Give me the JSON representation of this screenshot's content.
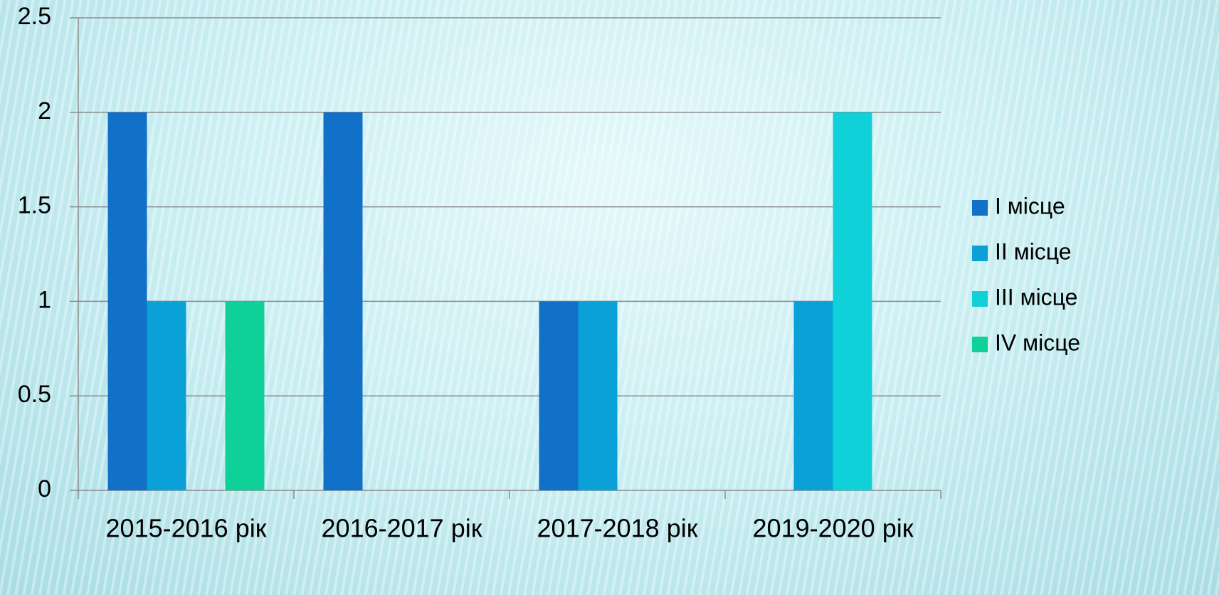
{
  "chart_data": {
    "type": "bar",
    "categories": [
      "2015-2016 рік",
      "2016-2017 рік",
      "2017-2018 рік",
      "2019-2020 рік"
    ],
    "series": [
      {
        "name": "I місце",
        "color": "#1170c8",
        "values": [
          2,
          2,
          1,
          0
        ]
      },
      {
        "name": "II місце",
        "color": "#0aa0d8",
        "values": [
          1,
          0,
          1,
          1
        ]
      },
      {
        "name": "III місце",
        "color": "#10d0d8",
        "values": [
          0,
          0,
          0,
          2
        ]
      },
      {
        "name": "IV місце",
        "color": "#10d09a",
        "values": [
          1,
          0,
          0,
          0
        ]
      }
    ],
    "ylim": [
      0,
      2.5
    ],
    "yticks": [
      0,
      0.5,
      1,
      1.5,
      2,
      2.5
    ],
    "grid": true,
    "legend": "right"
  }
}
